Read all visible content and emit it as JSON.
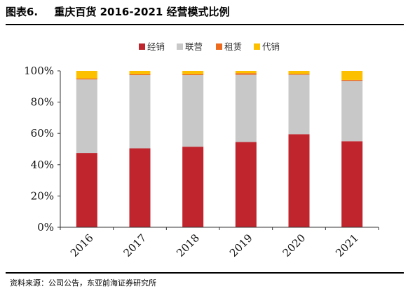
{
  "figure": {
    "label": "图表6.",
    "title": "重庆百货 2016-2021 经营模式比例",
    "source": "资料来源：公司公告，东亚前海证券研究所"
  },
  "chart_data": {
    "type": "bar",
    "stacked": true,
    "categories": [
      "2016",
      "2017",
      "2018",
      "2019",
      "2020",
      "2021"
    ],
    "series": [
      {
        "name": "经销",
        "color": "#c0242c",
        "values": [
          47.5,
          50.5,
          51.5,
          54.5,
          59.5,
          55.0
        ]
      },
      {
        "name": "联营",
        "color": "#c8c8c8",
        "values": [
          47.0,
          46.8,
          45.8,
          43.0,
          38.0,
          38.6
        ]
      },
      {
        "name": "租赁",
        "color": "#ec6b1f",
        "values": [
          0.6,
          0.6,
          0.6,
          1.0,
          0.5,
          0.6
        ]
      },
      {
        "name": "代销",
        "color": "#fcc000",
        "values": [
          4.9,
          2.1,
          2.1,
          1.5,
          2.0,
          5.8
        ]
      }
    ],
    "ylim": [
      0,
      100
    ],
    "yticks": [
      "0%",
      "20%",
      "40%",
      "60%",
      "80%",
      "100%"
    ],
    "xlabel": "",
    "ylabel": "",
    "legend": "top-center",
    "grid": false
  }
}
